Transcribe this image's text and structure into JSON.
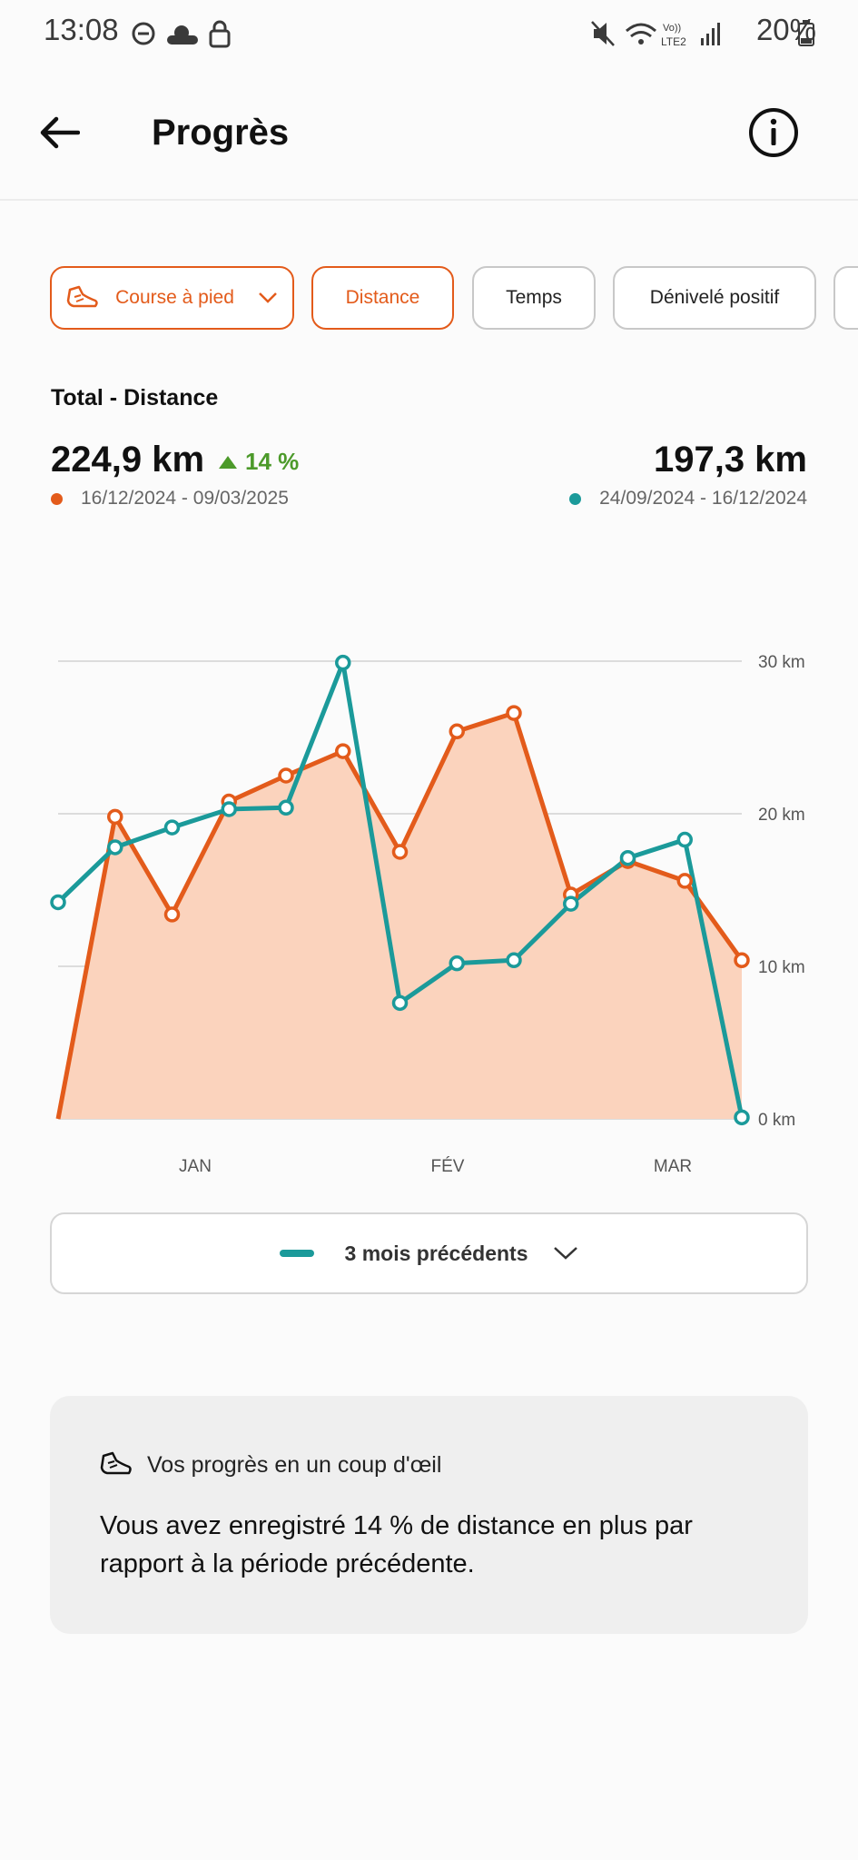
{
  "status_bar": {
    "time": "13:08",
    "battery": "20%"
  },
  "app_bar": {
    "title": "Progrès"
  },
  "filters": {
    "sport": "Course à pied",
    "metrics": [
      "Distance",
      "Temps",
      "Dénivelé positif"
    ],
    "selected_metric": "Distance"
  },
  "summary": {
    "section_title": "Total - Distance",
    "current_value": "224,9 km",
    "delta": "14 %",
    "current_range": "16/12/2024 - 09/03/2025",
    "previous_value": "197,3 km",
    "previous_range": "24/09/2024 - 16/12/2024"
  },
  "colors": {
    "current": "#e35b1b",
    "previous": "#1b9a9a",
    "fill": "#fbd3bd"
  },
  "chart_data": {
    "type": "line",
    "x_labels": [
      "JAN",
      "FÉV",
      "MAR"
    ],
    "y_ticks": [
      "30 km",
      "20 km",
      "10 km",
      "0 km"
    ],
    "ylim": [
      0,
      30
    ],
    "series": [
      {
        "values": [
          0,
          19.8,
          13.4,
          20.8,
          22.5,
          24.1,
          17.5,
          25.4,
          26.6,
          14.7,
          16.9,
          15.6,
          10.4
        ]
      },
      {
        "values": [
          14.2,
          17.8,
          19.1,
          20.3,
          20.4,
          29.9,
          7.6,
          10.2,
          10.4,
          14.1,
          17.1,
          18.3,
          0.1
        ]
      }
    ]
  },
  "period_selector": {
    "label": "3 mois précédents"
  },
  "insight": {
    "title": "Vos progrès en un coup d'œil",
    "text": "Vous avez enregistré 14 % de distance en plus par rapport à la période précédente."
  }
}
